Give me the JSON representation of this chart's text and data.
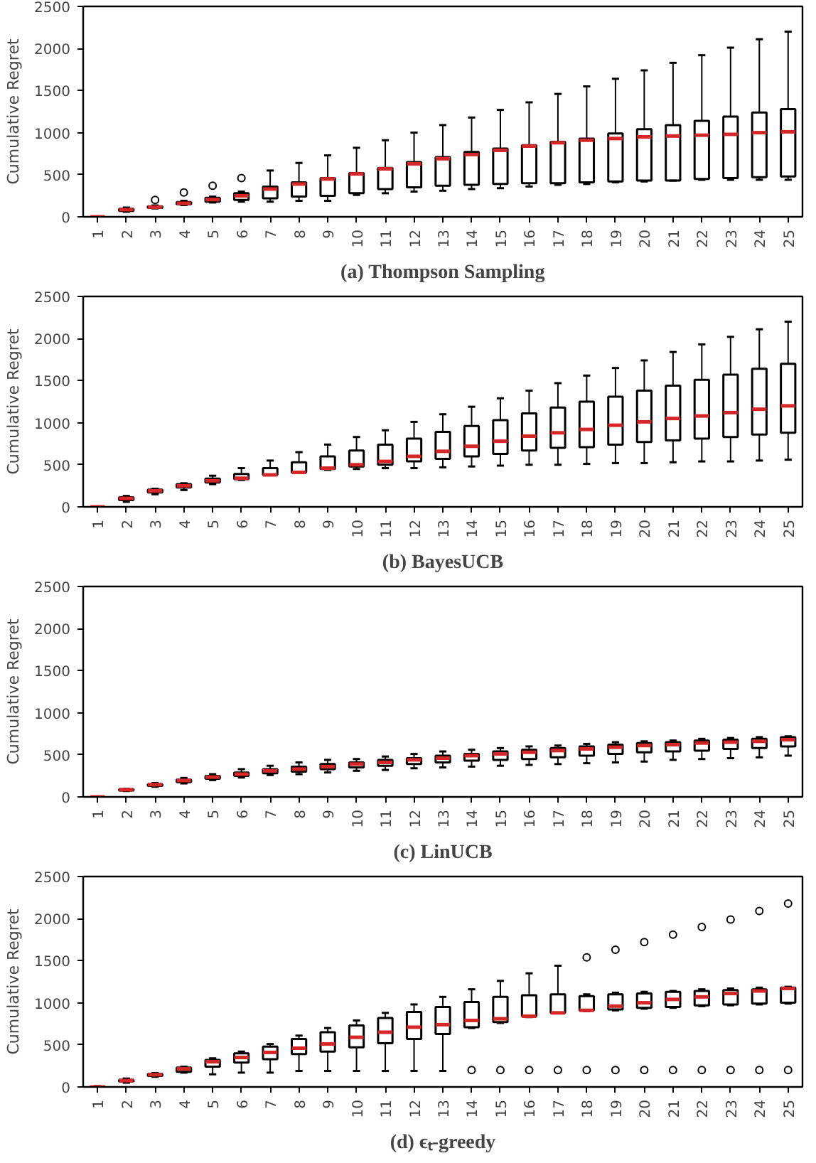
{
  "chart_data": [
    {
      "type": "box",
      "title": "(a) Thompson Sampling",
      "ylabel": "Cumulative Regret",
      "categories": [
        "1",
        "2",
        "3",
        "4",
        "5",
        "6",
        "7",
        "8",
        "9",
        "10",
        "11",
        "12",
        "13",
        "14",
        "15",
        "16",
        "17",
        "18",
        "19",
        "20",
        "21",
        "22",
        "23",
        "24",
        "25"
      ],
      "ylim": [
        0,
        2500
      ],
      "yticks": [
        0,
        500,
        1000,
        1500,
        2000,
        2500
      ],
      "grid": false,
      "series": [
        {
          "color": "#000000",
          "boxes": [
            {
              "low": 0,
              "q1": 0,
              "median": 0,
              "q3": 0,
              "high": 5
            },
            {
              "low": 60,
              "q1": 70,
              "median": 85,
              "q3": 95,
              "high": 110
            },
            {
              "low": 100,
              "q1": 105,
              "median": 115,
              "q3": 125,
              "high": 135,
              "outliers": [
                200
              ]
            },
            {
              "low": 140,
              "q1": 150,
              "median": 160,
              "q3": 175,
              "high": 190,
              "outliers": [
                290
              ]
            },
            {
              "low": 170,
              "q1": 180,
              "median": 205,
              "q3": 225,
              "high": 240,
              "outliers": [
                370
              ]
            },
            {
              "low": 180,
              "q1": 200,
              "median": 250,
              "q3": 280,
              "high": 300,
              "outliers": [
                460
              ]
            },
            {
              "low": 180,
              "q1": 220,
              "median": 330,
              "q3": 360,
              "high": 550
            },
            {
              "low": 190,
              "q1": 240,
              "median": 390,
              "q3": 410,
              "high": 640
            },
            {
              "low": 190,
              "q1": 250,
              "median": 450,
              "q3": 460,
              "high": 730
            },
            {
              "low": 260,
              "q1": 280,
              "median": 510,
              "q3": 520,
              "high": 820
            },
            {
              "low": 280,
              "q1": 330,
              "median": 570,
              "q3": 580,
              "high": 910
            },
            {
              "low": 300,
              "q1": 350,
              "median": 630,
              "q3": 650,
              "high": 1000
            },
            {
              "low": 310,
              "q1": 370,
              "median": 690,
              "q3": 710,
              "high": 1090
            },
            {
              "low": 330,
              "q1": 380,
              "median": 740,
              "q3": 770,
              "high": 1180
            },
            {
              "low": 340,
              "q1": 390,
              "median": 790,
              "q3": 810,
              "high": 1270
            },
            {
              "low": 360,
              "q1": 400,
              "median": 840,
              "q3": 850,
              "high": 1360
            },
            {
              "low": 380,
              "q1": 400,
              "median": 880,
              "q3": 890,
              "high": 1460
            },
            {
              "low": 390,
              "q1": 410,
              "median": 910,
              "q3": 930,
              "high": 1550
            },
            {
              "low": 410,
              "q1": 420,
              "median": 930,
              "q3": 990,
              "high": 1640
            },
            {
              "low": 420,
              "q1": 430,
              "median": 950,
              "q3": 1040,
              "high": 1740
            },
            {
              "low": 430,
              "q1": 430,
              "median": 960,
              "q3": 1090,
              "high": 1830
            },
            {
              "low": 440,
              "q1": 450,
              "median": 970,
              "q3": 1140,
              "high": 1920
            },
            {
              "low": 440,
              "q1": 460,
              "median": 980,
              "q3": 1190,
              "high": 2010
            },
            {
              "low": 440,
              "q1": 470,
              "median": 1000,
              "q3": 1240,
              "high": 2110
            },
            {
              "low": 440,
              "q1": 480,
              "median": 1010,
              "q3": 1280,
              "high": 2200
            }
          ]
        }
      ]
    },
    {
      "type": "box",
      "title": "(b) BayesUCB",
      "ylabel": "Cumulative Regret",
      "categories": [
        "1",
        "2",
        "3",
        "4",
        "5",
        "6",
        "7",
        "8",
        "9",
        "10",
        "11",
        "12",
        "13",
        "14",
        "15",
        "16",
        "17",
        "18",
        "19",
        "20",
        "21",
        "22",
        "23",
        "24",
        "25"
      ],
      "ylim": [
        0,
        2500
      ],
      "yticks": [
        0,
        500,
        1000,
        1500,
        2000,
        2500
      ],
      "grid": false,
      "series": [
        {
          "color": "#000000",
          "boxes": [
            {
              "low": 0,
              "q1": 0,
              "median": 0,
              "q3": 0,
              "high": 5
            },
            {
              "low": 60,
              "q1": 80,
              "median": 100,
              "q3": 115,
              "high": 130
            },
            {
              "low": 150,
              "q1": 170,
              "median": 190,
              "q3": 205,
              "high": 215
            },
            {
              "low": 200,
              "q1": 230,
              "median": 250,
              "q3": 270,
              "high": 280
            },
            {
              "low": 270,
              "q1": 290,
              "median": 310,
              "q3": 335,
              "high": 370
            },
            {
              "low": 320,
              "q1": 330,
              "median": 340,
              "q3": 390,
              "high": 460
            },
            {
              "low": 380,
              "q1": 380,
              "median": 380,
              "q3": 460,
              "high": 550
            },
            {
              "low": 410,
              "q1": 410,
              "median": 410,
              "q3": 530,
              "high": 650
            },
            {
              "low": 440,
              "q1": 450,
              "median": 460,
              "q3": 600,
              "high": 740
            },
            {
              "low": 450,
              "q1": 480,
              "median": 500,
              "q3": 670,
              "high": 830
            },
            {
              "low": 460,
              "q1": 500,
              "median": 540,
              "q3": 740,
              "high": 910
            },
            {
              "low": 460,
              "q1": 540,
              "median": 600,
              "q3": 810,
              "high": 1010
            },
            {
              "low": 470,
              "q1": 570,
              "median": 660,
              "q3": 890,
              "high": 1100
            },
            {
              "low": 480,
              "q1": 600,
              "median": 720,
              "q3": 960,
              "high": 1190
            },
            {
              "low": 490,
              "q1": 630,
              "median": 780,
              "q3": 1030,
              "high": 1290
            },
            {
              "low": 500,
              "q1": 670,
              "median": 840,
              "q3": 1110,
              "high": 1380
            },
            {
              "low": 500,
              "q1": 700,
              "median": 880,
              "q3": 1180,
              "high": 1470
            },
            {
              "low": 510,
              "q1": 710,
              "median": 920,
              "q3": 1250,
              "high": 1560
            },
            {
              "low": 520,
              "q1": 740,
              "median": 970,
              "q3": 1310,
              "high": 1650
            },
            {
              "low": 520,
              "q1": 770,
              "median": 1010,
              "q3": 1380,
              "high": 1740
            },
            {
              "low": 530,
              "q1": 790,
              "median": 1050,
              "q3": 1440,
              "high": 1840
            },
            {
              "low": 540,
              "q1": 810,
              "median": 1080,
              "q3": 1510,
              "high": 1930
            },
            {
              "low": 540,
              "q1": 830,
              "median": 1120,
              "q3": 1570,
              "high": 2020
            },
            {
              "low": 550,
              "q1": 860,
              "median": 1160,
              "q3": 1640,
              "high": 2110
            },
            {
              "low": 560,
              "q1": 880,
              "median": 1200,
              "q3": 1700,
              "high": 2200
            }
          ]
        }
      ]
    },
    {
      "type": "box",
      "title": "(c) LinUCB",
      "ylabel": "Cumulative Regret",
      "categories": [
        "1",
        "2",
        "3",
        "4",
        "5",
        "6",
        "7",
        "8",
        "9",
        "10",
        "11",
        "12",
        "13",
        "14",
        "15",
        "16",
        "17",
        "18",
        "19",
        "20",
        "21",
        "22",
        "23",
        "24",
        "25"
      ],
      "ylim": [
        0,
        2500
      ],
      "yticks": [
        0,
        500,
        1000,
        1500,
        2000,
        2500
      ],
      "grid": false,
      "series": [
        {
          "color": "#000000",
          "boxes": [
            {
              "low": 0,
              "q1": 0,
              "median": 0,
              "q3": 0,
              "high": 5
            },
            {
              "low": 70,
              "q1": 75,
              "median": 85,
              "q3": 90,
              "high": 95
            },
            {
              "low": 120,
              "q1": 130,
              "median": 145,
              "q3": 150,
              "high": 165
            },
            {
              "low": 160,
              "q1": 175,
              "median": 195,
              "q3": 205,
              "high": 225
            },
            {
              "low": 200,
              "q1": 215,
              "median": 235,
              "q3": 250,
              "high": 270
            },
            {
              "low": 230,
              "q1": 250,
              "median": 270,
              "q3": 290,
              "high": 330
            },
            {
              "low": 260,
              "q1": 280,
              "median": 310,
              "q3": 330,
              "high": 370
            },
            {
              "low": 270,
              "q1": 300,
              "median": 330,
              "q3": 360,
              "high": 410
            },
            {
              "low": 290,
              "q1": 330,
              "median": 360,
              "q3": 390,
              "high": 440
            },
            {
              "low": 310,
              "q1": 350,
              "median": 390,
              "q3": 410,
              "high": 450
            },
            {
              "low": 320,
              "q1": 370,
              "median": 410,
              "q3": 440,
              "high": 480
            },
            {
              "low": 340,
              "q1": 390,
              "median": 440,
              "q3": 460,
              "high": 510
            },
            {
              "low": 350,
              "q1": 410,
              "median": 460,
              "q3": 490,
              "high": 540
            },
            {
              "low": 360,
              "q1": 430,
              "median": 490,
              "q3": 510,
              "high": 560
            },
            {
              "low": 370,
              "q1": 440,
              "median": 510,
              "q3": 540,
              "high": 580
            },
            {
              "low": 380,
              "q1": 450,
              "median": 530,
              "q3": 560,
              "high": 600
            },
            {
              "low": 390,
              "q1": 470,
              "median": 550,
              "q3": 580,
              "high": 610
            },
            {
              "low": 400,
              "q1": 490,
              "median": 570,
              "q3": 600,
              "high": 630
            },
            {
              "low": 410,
              "q1": 510,
              "median": 590,
              "q3": 620,
              "high": 650
            },
            {
              "low": 420,
              "q1": 530,
              "median": 610,
              "q3": 640,
              "high": 660
            },
            {
              "low": 440,
              "q1": 540,
              "median": 620,
              "q3": 650,
              "high": 670
            },
            {
              "low": 450,
              "q1": 550,
              "median": 640,
              "q3": 670,
              "high": 690
            },
            {
              "low": 460,
              "q1": 570,
              "median": 650,
              "q3": 680,
              "high": 700
            },
            {
              "low": 470,
              "q1": 580,
              "median": 660,
              "q3": 690,
              "high": 710
            },
            {
              "low": 490,
              "q1": 600,
              "median": 680,
              "q3": 710,
              "high": 720
            }
          ]
        }
      ]
    },
    {
      "type": "box",
      "title": "(d) ϵₜ-greedy",
      "ylabel": "Cumulative Regret",
      "categories": [
        "1",
        "2",
        "3",
        "4",
        "5",
        "6",
        "7",
        "8",
        "9",
        "10",
        "11",
        "12",
        "13",
        "14",
        "15",
        "16",
        "17",
        "18",
        "19",
        "20",
        "21",
        "22",
        "23",
        "24",
        "25"
      ],
      "ylim": [
        0,
        2500
      ],
      "yticks": [
        0,
        500,
        1000,
        1500,
        2000,
        2500
      ],
      "grid": false,
      "series": [
        {
          "color": "#000000",
          "boxes": [
            {
              "low": 0,
              "q1": 0,
              "median": 0,
              "q3": 5,
              "high": 10
            },
            {
              "low": 50,
              "q1": 65,
              "median": 75,
              "q3": 85,
              "high": 100
            },
            {
              "low": 120,
              "q1": 130,
              "median": 145,
              "q3": 155,
              "high": 165
            },
            {
              "low": 170,
              "q1": 180,
              "median": 215,
              "q3": 230,
              "high": 240
            },
            {
              "low": 150,
              "q1": 240,
              "median": 300,
              "q3": 320,
              "high": 340
            },
            {
              "low": 170,
              "q1": 290,
              "median": 350,
              "q3": 400,
              "high": 420
            },
            {
              "low": 170,
              "q1": 330,
              "median": 410,
              "q3": 480,
              "high": 510
            },
            {
              "low": 190,
              "q1": 390,
              "median": 460,
              "q3": 570,
              "high": 610
            },
            {
              "low": 190,
              "q1": 420,
              "median": 510,
              "q3": 650,
              "high": 700
            },
            {
              "low": 190,
              "q1": 470,
              "median": 590,
              "q3": 730,
              "high": 790
            },
            {
              "low": 190,
              "q1": 520,
              "median": 650,
              "q3": 820,
              "high": 880
            },
            {
              "low": 190,
              "q1": 570,
              "median": 710,
              "q3": 890,
              "high": 980
            },
            {
              "low": 190,
              "q1": 630,
              "median": 740,
              "q3": 950,
              "high": 1070
            },
            {
              "low": 700,
              "q1": 710,
              "median": 790,
              "q3": 1010,
              "high": 1160,
              "outliers": [
                200
              ]
            },
            {
              "low": 760,
              "q1": 770,
              "median": 810,
              "q3": 1070,
              "high": 1260,
              "outliers": [
                200
              ]
            },
            {
              "low": 830,
              "q1": 840,
              "median": 840,
              "q3": 1090,
              "high": 1350,
              "outliers": [
                200
              ]
            },
            {
              "low": 880,
              "q1": 880,
              "median": 880,
              "q3": 1100,
              "high": 1440,
              "outliers": [
                200
              ]
            },
            {
              "low": 900,
              "q1": 910,
              "median": 910,
              "q3": 1080,
              "high": 1100,
              "outliers": [
                200,
                1540
              ]
            },
            {
              "low": 910,
              "q1": 920,
              "median": 960,
              "q3": 1100,
              "high": 1120,
              "outliers": [
                200,
                1630
              ]
            },
            {
              "low": 930,
              "q1": 940,
              "median": 1000,
              "q3": 1110,
              "high": 1130,
              "outliers": [
                200,
                1720
              ]
            },
            {
              "low": 940,
              "q1": 950,
              "median": 1040,
              "q3": 1130,
              "high": 1140,
              "outliers": [
                200,
                1810
              ]
            },
            {
              "low": 960,
              "q1": 970,
              "median": 1070,
              "q3": 1140,
              "high": 1160,
              "outliers": [
                200,
                1900
              ]
            },
            {
              "low": 970,
              "q1": 980,
              "median": 1110,
              "q3": 1150,
              "high": 1170,
              "outliers": [
                200,
                1990
              ]
            },
            {
              "low": 980,
              "q1": 990,
              "median": 1140,
              "q3": 1160,
              "high": 1180,
              "outliers": [
                200,
                2090
              ]
            },
            {
              "low": 990,
              "q1": 1000,
              "median": 1170,
              "q3": 1180,
              "high": 1190,
              "outliers": [
                200,
                2180
              ]
            }
          ]
        }
      ]
    }
  ]
}
